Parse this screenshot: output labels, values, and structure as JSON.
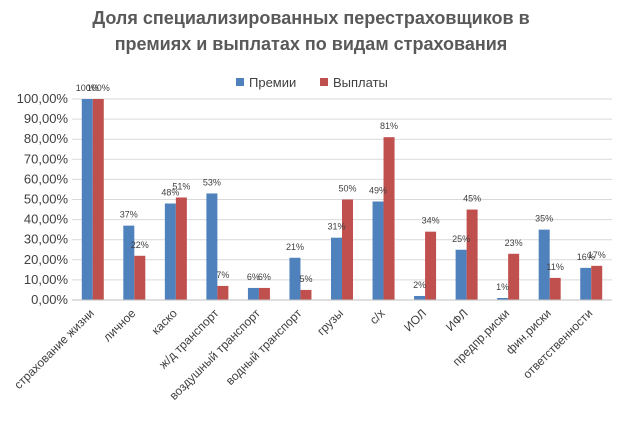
{
  "chart_data": {
    "type": "bar",
    "title_lines": [
      "Доля специализированных перестраховщиков в",
      "премиях и выплатах по видам страхования"
    ],
    "categories": [
      "страхование жизни",
      "личное",
      "каско",
      "ж/д транспорт",
      "воздушный транспорт",
      "водный транспорт",
      "грузы",
      "с/х",
      "ИОЛ",
      "ИФЛ",
      "предпр.риски",
      "фин.риски",
      "ответственности"
    ],
    "series": [
      {
        "name": "Премии",
        "color": "#4f81bd",
        "values": [
          100,
          37,
          48,
          53,
          6,
          21,
          31,
          49,
          2,
          25,
          1,
          35,
          16
        ],
        "labels": [
          "100%",
          "37%",
          "48%",
          "53%",
          "6%",
          "21%",
          "31%",
          "49%",
          "2%",
          "25%",
          "1%",
          "35%",
          "16%"
        ]
      },
      {
        "name": "Выплаты",
        "color": "#c0504d",
        "values": [
          100,
          22,
          51,
          7,
          6,
          5,
          50,
          81,
          34,
          45,
          23,
          11,
          17
        ],
        "labels": [
          "100%",
          "22%",
          "51%",
          "7%",
          "6%",
          "5%",
          "50%",
          "81%",
          "34%",
          "45%",
          "23%",
          "11%",
          "17%"
        ]
      }
    ],
    "y_ticks": [
      "0,00%",
      "10,00%",
      "20,00%",
      "30,00%",
      "40,00%",
      "50,00%",
      "60,00%",
      "70,00%",
      "80,00%",
      "90,00%",
      "100,00%"
    ],
    "ylim": [
      0,
      100
    ],
    "grid": true,
    "legend_position": "top"
  }
}
